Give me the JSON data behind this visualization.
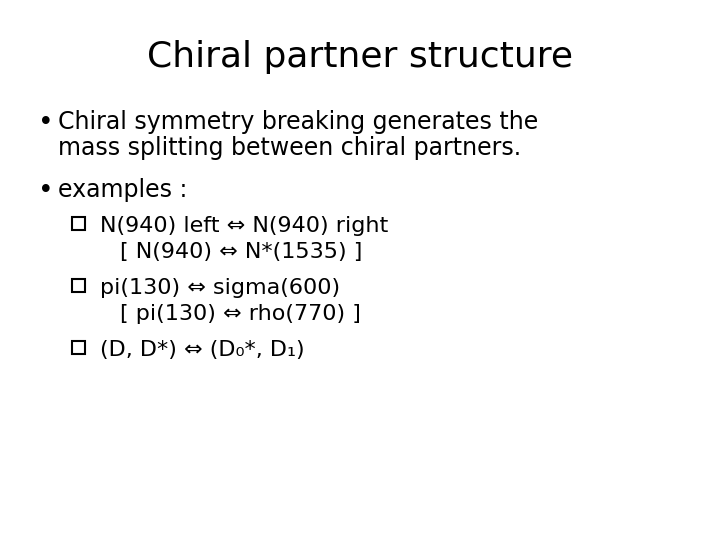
{
  "title": "Chiral partner structure",
  "title_fontsize": 26,
  "bg_color": "#ffffff",
  "text_color": "#000000",
  "bullet1_line1": "Chiral symmetry breaking generates the",
  "bullet1_line2": "mass splitting between chiral partners.",
  "bullet2": "examples :",
  "sub1_line1": "N(940) left ⇔ N(940) right",
  "sub1_line2": "[ N(940) ⇔ N*(1535) ]",
  "sub2_line1": "pi(130) ⇔ sigma(600)",
  "sub2_line2": "[ pi(130) ⇔ rho(770) ]",
  "sub3": "(D, D*) ⇔ (D₀*, D₁)",
  "body_fontsize": 17,
  "sub_fontsize": 16
}
